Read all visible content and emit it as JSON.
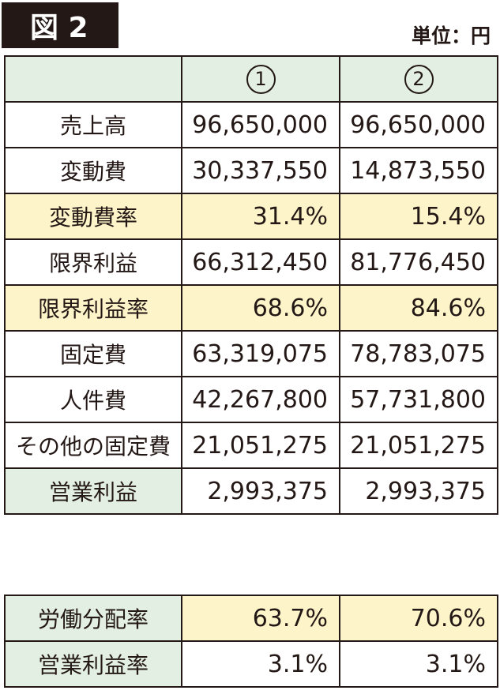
{
  "figure_label": "図 2",
  "unit": "単位：円",
  "columns": [
    "1",
    "2"
  ],
  "rows": [
    {
      "label": "売上高",
      "v1": "96,650,000",
      "v2": "96,650,000"
    },
    {
      "label": "変動費",
      "v1": "30,337,550",
      "v2": "14,873,550"
    },
    {
      "label": "変動費率",
      "v1": "31.4%",
      "v2": "15.4%"
    },
    {
      "label": "限界利益",
      "v1": "66,312,450",
      "v2": "81,776,450"
    },
    {
      "label": "限界利益率",
      "v1": "68.6%",
      "v2": "84.6%"
    },
    {
      "label": "固定費",
      "v1": "63,319,075",
      "v2": "78,783,075"
    },
    {
      "label": "人件費",
      "v1": "42,267,800",
      "v2": "57,731,800"
    },
    {
      "label": "その他の固定費",
      "v1": "21,051,275",
      "v2": "21,051,275"
    },
    {
      "label": "営業利益",
      "v1": "2,993,375",
      "v2": "2,993,375"
    }
  ],
  "ratios": [
    {
      "label": "労働分配率",
      "v1": "63.7%",
      "v2": "70.6%"
    },
    {
      "label": "営業利益率",
      "v1": "3.1%",
      "v2": "3.1%"
    }
  ],
  "colors": {
    "header_green": "#e3efe3",
    "highlight_yellow": "#fdf5c9",
    "dark": "#231815"
  }
}
